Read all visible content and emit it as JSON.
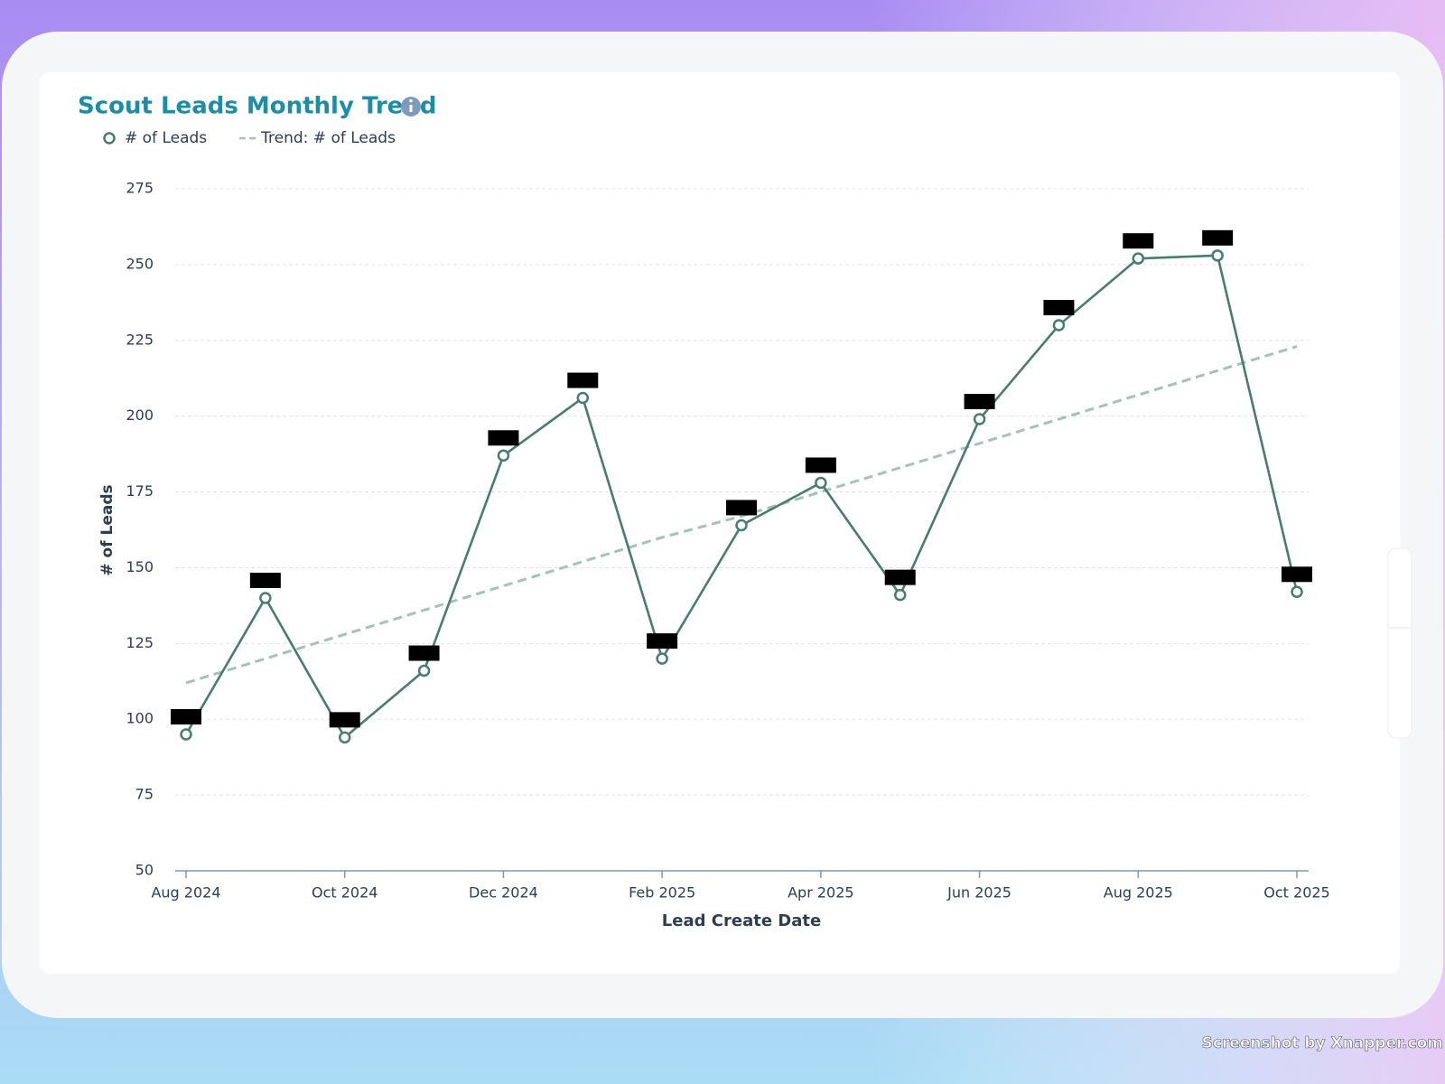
{
  "chart_data": {
    "type": "line",
    "title": "Scout Leads Monthly Trend",
    "x_label": "Lead Create Date",
    "y_label": "# of Leads",
    "categories": [
      "Aug 2024",
      null,
      "Oct 2024",
      null,
      "Dec 2024",
      null,
      "Feb 2025",
      null,
      "Apr 2025",
      null,
      "Jun 2025",
      null,
      "Aug 2025",
      null,
      "Oct 2025"
    ],
    "series": [
      {
        "name": "# of Leads",
        "color": "#4a7c6e",
        "values": [
          95,
          140,
          94,
          116,
          187,
          206,
          120,
          164,
          178,
          141,
          199,
          230,
          252,
          253,
          142
        ]
      },
      {
        "name": "Trend: # of Leads",
        "color": "#a3c2b8",
        "dashed": true,
        "values": [
          112,
          120,
          128,
          136,
          144,
          152,
          160,
          167,
          175,
          183,
          191,
          199,
          207,
          215,
          223
        ]
      }
    ],
    "ylim": [
      50,
      275
    ],
    "yticks": [
      50,
      75,
      100,
      125,
      150,
      175,
      200,
      225,
      250,
      275
    ],
    "grid": true,
    "legend": "top-left",
    "watermark": "Screenshot by Xnapper.com"
  }
}
